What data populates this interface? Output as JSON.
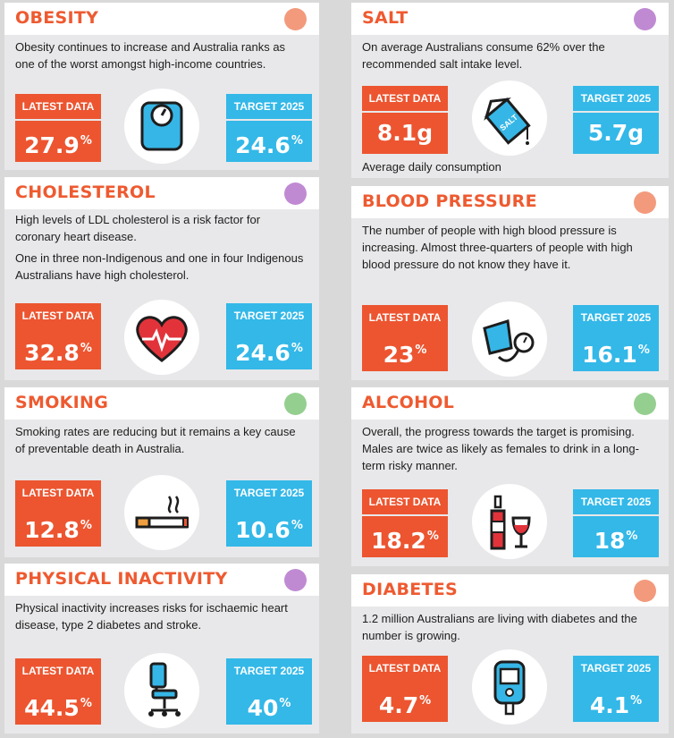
{
  "colors": {
    "orange": "#ec5530",
    "blue": "#33b8e8",
    "purple": "#c08ad3",
    "green": "#95cf90",
    "salmon": "#f39a7d"
  },
  "labels": {
    "latest": "LATEST DATA",
    "target": "TARGET 2025"
  },
  "obesity": {
    "title": "OBESITY",
    "desc": "Obesity continues to increase and Australia ranks as one of the worst amongst high-income countries.",
    "latest": "27.9",
    "latest_unit": "%",
    "target": "24.6",
    "target_unit": "%",
    "icon": "scale-icon"
  },
  "salt": {
    "title": "SALT",
    "desc": "On average Australians consume 62% over the recommended salt intake level.",
    "latest": "8.1g",
    "target": "5.7g",
    "note": "Average daily consumption",
    "icon": "salt-icon",
    "icon_text": "SALT"
  },
  "cholesterol": {
    "title": "CHOLESTEROL",
    "desc": "High levels of LDL cholesterol is a risk factor for coronary heart disease.",
    "desc2": "One in three non-Indigenous and one in four Indigenous Australians have high cholesterol.",
    "latest": "32.8",
    "latest_unit": "%",
    "target": "24.6",
    "target_unit": "%",
    "icon": "heart-icon"
  },
  "blood_pressure": {
    "title": "BLOOD PRESSURE",
    "desc": "The number of people with high blood pressure is increasing. Almost three-quarters of people with high blood pressure do not know they have it.",
    "latest": "23",
    "latest_unit": "%",
    "target": "16.1",
    "target_unit": "%",
    "icon": "blood-pressure-cuff-icon"
  },
  "smoking": {
    "title": "SMOKING",
    "desc": "Smoking rates are reducing but it remains a key cause of preventable death in Australia.",
    "latest": "12.8",
    "latest_unit": "%",
    "target": "10.6",
    "target_unit": "%",
    "icon": "cigarette-icon"
  },
  "alcohol": {
    "title": "ALCOHOL",
    "desc": "Overall, the progress towards the target is promising. Males are twice as likely as females to drink in a long-term risky manner.",
    "latest": "18.2",
    "latest_unit": "%",
    "target": "18",
    "target_unit": "%",
    "icon": "wine-icon"
  },
  "physical_inactivity": {
    "title": "PHYSICAL INACTIVITY",
    "desc": "Physical inactivity increases risks for ischaemic heart disease, type 2 diabetes and stroke.",
    "latest": "44.5",
    "latest_unit": "%",
    "target": "40",
    "target_unit": "%",
    "icon": "office-chair-icon"
  },
  "diabetes": {
    "title": "DIABETES",
    "desc": "1.2 million Australians are living with diabetes and the number is growing.",
    "latest": "4.7",
    "latest_unit": "%",
    "target": "4.1",
    "target_unit": "%",
    "icon": "glucose-meter-icon"
  }
}
